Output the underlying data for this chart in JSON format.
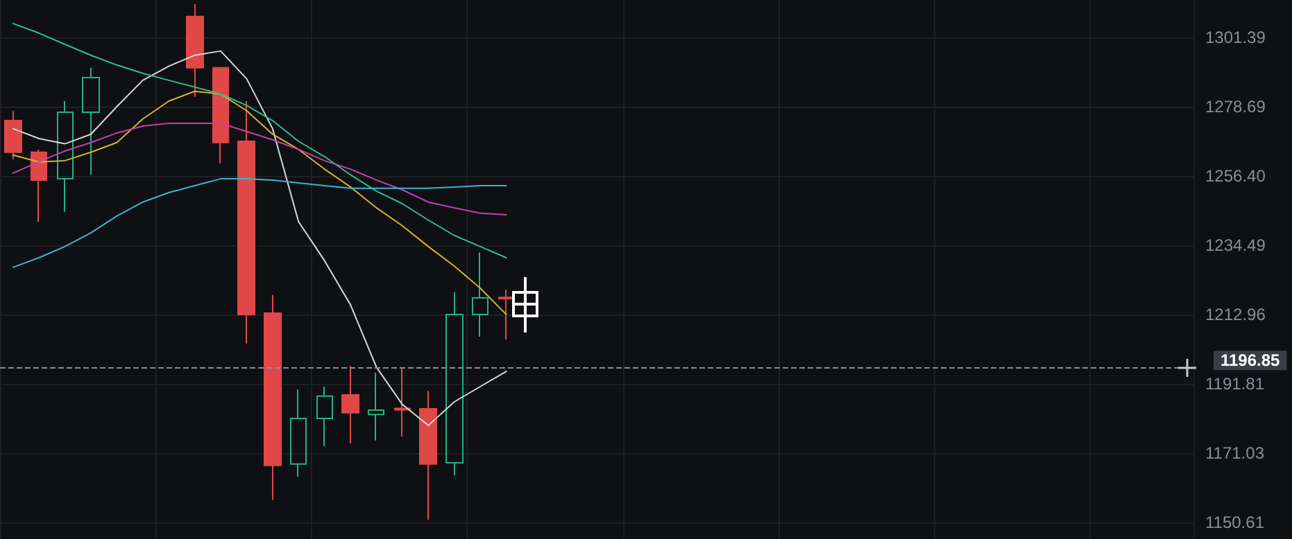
{
  "chart_data": {
    "type": "candlestick",
    "categories": [
      null,
      null,
      null,
      null,
      null,
      null,
      null,
      null,
      null,
      null,
      null,
      null,
      null,
      null,
      null,
      null,
      null,
      null,
      null,
      null,
      null,
      null,
      null,
      null,
      null,
      null,
      null,
      null,
      null,
      null,
      null,
      null,
      null,
      null,
      null,
      null,
      null,
      null,
      null,
      null,
      null,
      null,
      null,
      null,
      null,
      null
    ],
    "log": true,
    "grid": true,
    "marker": "none",
    "line_style": "solid",
    "ylim": [
      1145.8,
      1313.8
    ],
    "yticks": [
      {
        "value": 1150.61,
        "label": "1150.61"
      },
      {
        "value": 1171.03,
        "label": "1171.03"
      },
      {
        "value": 1191.81,
        "label": "1191.81"
      },
      {
        "value": 1212.96,
        "label": "1212.96"
      },
      {
        "value": 1234.49,
        "label": "1234.49"
      },
      {
        "value": 1256.4,
        "label": "1256.40"
      },
      {
        "value": 1278.69,
        "label": "1278.69"
      },
      {
        "value": 1301.39,
        "label": "1301.39"
      }
    ],
    "ref_lines": [
      {
        "axis": "y",
        "value": 1196.85,
        "label": "1196.85",
        "color": "#8a8d94",
        "line_style": "dashed"
      }
    ],
    "series": [
      {
        "type": "candlestick",
        "ohlc": [
          [
            1274.2,
            1277.4,
            1261.8,
            1264.0
          ],
          [
            1264.0,
            1264.9,
            1241.9,
            1255.1
          ],
          [
            1255.5,
            1280.5,
            1245.0,
            1276.9
          ],
          [
            1276.9,
            1291.4,
            1256.8,
            1288.2
          ],
          null,
          null,
          null,
          [
            1308.3,
            1312.5,
            1281.9,
            1291.4
          ],
          [
            1291.4,
            1291.6,
            1260.4,
            1267.1
          ],
          [
            1267.5,
            1280.5,
            1204.1,
            1212.96
          ],
          [
            1213.4,
            1219.0,
            1157.2,
            1167.4
          ],
          [
            1167.8,
            1190.1,
            1164.1,
            1181.4
          ],
          [
            1181.4,
            1191.0,
            1173.1,
            1188.1
          ],
          [
            1188.5,
            1197.3,
            1173.9,
            1183.1
          ],
          [
            1182.6,
            1195.2,
            1174.8,
            1183.9
          ],
          [
            1184.4,
            1196.5,
            1176.0,
            1184.0
          ],
          [
            1184.3,
            1189.7,
            1151.4,
            1167.8
          ],
          [
            1168.2,
            1219.9,
            1164.5,
            1212.96
          ],
          [
            1212.96,
            1232.3,
            1206.2,
            1218.1
          ],
          [
            1218.3,
            1220.7,
            1205.3,
            1217.9
          ],
          null,
          null,
          null,
          null,
          null,
          null,
          null,
          null,
          null,
          null,
          null,
          null,
          null,
          null,
          null,
          null,
          null,
          null,
          null,
          null,
          null,
          null,
          null,
          null,
          null,
          null
        ],
        "colors": [
          "#e04848",
          "#e04848",
          "#1fb57f",
          "#1fb57f",
          null,
          null,
          null,
          "#e04848",
          "#e04848",
          "#e04848",
          "#e04848",
          "#1fb57f",
          "#1fb57f",
          "#e04848",
          "#1fb57f",
          "#e04848",
          "#e04848",
          "#1fb57f",
          "#1fb57f",
          "#e04848",
          null,
          null,
          null,
          null,
          null,
          null,
          null,
          null,
          null,
          null,
          null,
          null,
          null,
          null,
          null,
          null,
          null,
          null,
          null,
          null,
          null,
          null,
          null,
          null,
          null,
          null
        ]
      },
      {
        "type": "line",
        "color": "#d8d8d8",
        "values": [
          1271.6,
          1268.4,
          1266.7,
          1269.8,
          1278.7,
          1287.3,
          1291.9,
          1295.5,
          1296.9,
          1287.8,
          1271.6,
          1241.9,
          1229.7,
          1216.0,
          1196.9,
          1185.6,
          1179.3,
          1186.4,
          1191.0,
          1195.6,
          null,
          null,
          null,
          null,
          null,
          null,
          null,
          null,
          null,
          null,
          null,
          null,
          null,
          null,
          null,
          null,
          null,
          null,
          null,
          null,
          null,
          null,
          null,
          null,
          null,
          null
        ]
      },
      {
        "type": "line",
        "color": "#d2b62c",
        "values": [
          1263.1,
          1260.9,
          1261.3,
          1264.0,
          1267.1,
          1274.7,
          1280.5,
          1283.7,
          1282.8,
          1277.4,
          1269.8,
          1264.9,
          1258.6,
          1252.9,
          1246.3,
          1240.6,
          1234.1,
          1228.0,
          1221.1,
          1213.0,
          null,
          null,
          null,
          null,
          null,
          null,
          null,
          null,
          null,
          null,
          null,
          null,
          null,
          null,
          null,
          null,
          null,
          null,
          null,
          null,
          null,
          null,
          null,
          null,
          null,
          null
        ]
      },
      {
        "type": "line",
        "color": "#2bbf8f",
        "values": [
          1306.0,
          1302.8,
          1299.1,
          1295.5,
          1292.3,
          1289.6,
          1287.3,
          1285.1,
          1282.8,
          1279.1,
          1274.2,
          1267.5,
          1262.6,
          1256.8,
          1251.6,
          1247.6,
          1242.4,
          1237.6,
          1234.1,
          1230.6,
          null,
          null,
          null,
          null,
          null,
          null,
          null,
          null,
          null,
          null,
          null,
          null,
          null,
          null,
          null,
          null,
          null,
          null,
          null,
          null,
          null,
          null,
          null,
          null,
          null,
          null
        ]
      },
      {
        "type": "line",
        "color": "#c63fae",
        "values": [
          1257.3,
          1260.9,
          1264.4,
          1267.1,
          1270.2,
          1272.4,
          1273.3,
          1273.3,
          1273.3,
          1270.7,
          1268.0,
          1264.9,
          1261.3,
          1258.6,
          1255.1,
          1252.0,
          1248.1,
          1246.3,
          1244.6,
          1244.1,
          null,
          null,
          null,
          null,
          null,
          null,
          null,
          null,
          null,
          null,
          null,
          null,
          null,
          null,
          null,
          null,
          null,
          null,
          null,
          null,
          null,
          null,
          null,
          null,
          null,
          null
        ]
      },
      {
        "type": "line",
        "color": "#3bb6d0",
        "values": [
          1227.6,
          1230.6,
          1234.1,
          1238.4,
          1243.7,
          1248.1,
          1251.1,
          1253.3,
          1255.5,
          1255.5,
          1255.1,
          1254.2,
          1253.3,
          1252.5,
          1252.5,
          1252.5,
          1252.5,
          1252.9,
          1253.3,
          1253.3,
          null,
          null,
          null,
          null,
          null,
          null,
          null,
          null,
          null,
          null,
          null,
          null,
          null,
          null,
          null,
          null,
          null,
          null,
          null,
          null,
          null,
          null,
          null,
          null,
          null,
          null
        ]
      }
    ]
  }
}
